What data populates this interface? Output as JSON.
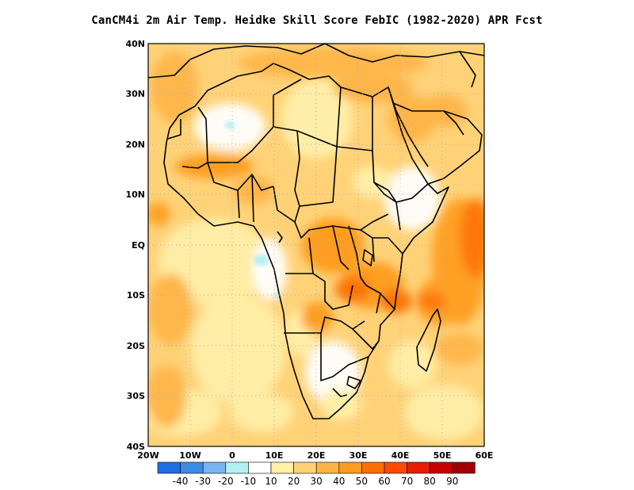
{
  "title": "CanCM4i  2m Air Temp. Heidke Skill Score FebIC (1982-2020) APR Fcst",
  "map": {
    "lat_labels": [
      "40N",
      "30N",
      "20N",
      "10N",
      "EQ",
      "10S",
      "20S",
      "30S",
      "40S"
    ],
    "lon_labels": [
      "20W",
      "10W",
      "0",
      "10E",
      "20E",
      "30E",
      "40E",
      "50E",
      "60E"
    ],
    "lon_range": [
      -20,
      60
    ],
    "lat_range": [
      -40,
      40
    ],
    "grid": "dotted"
  },
  "colorbar": {
    "colors": [
      "#1e6ee6",
      "#3c8ce6",
      "#78b4f0",
      "#b4f0f0",
      "#ffffff",
      "#fff0aa",
      "#ffd278",
      "#ffb446",
      "#ff9b1e",
      "#ff6e00",
      "#ff4b00",
      "#e61e00",
      "#c80000",
      "#a00000"
    ],
    "labels": [
      "-40",
      "-30",
      "-20",
      "-10",
      "10",
      "20",
      "30",
      "40",
      "50",
      "60",
      "70",
      "80",
      "90"
    ]
  }
}
